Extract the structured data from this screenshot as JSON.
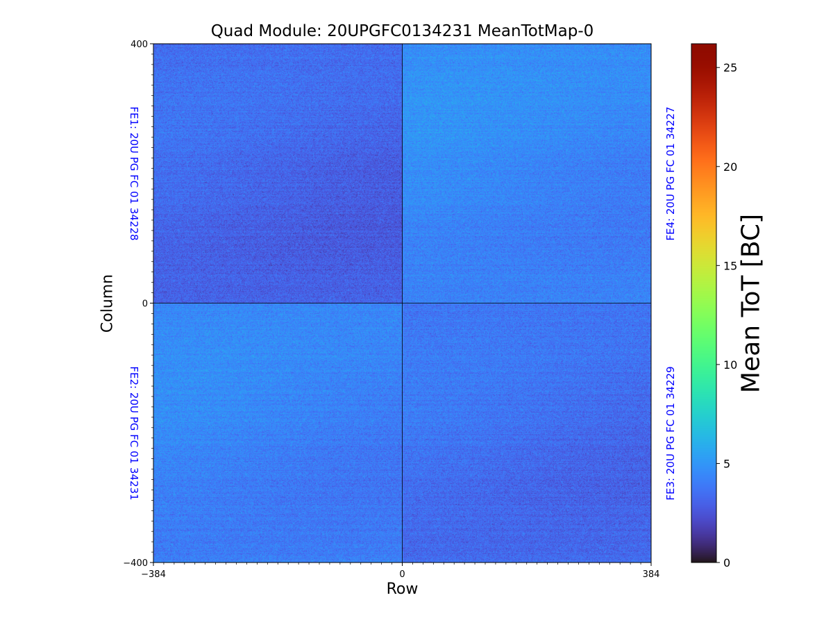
{
  "chart_data": {
    "type": "heatmap",
    "title": "Quad Module: 20UPGFC0134231 MeanTotMap-0",
    "xlabel": "Row",
    "ylabel": "Column",
    "xlim": [
      -384,
      384
    ],
    "ylim": [
      -400,
      400
    ],
    "x_ticks": [
      "−384",
      "0",
      "384"
    ],
    "y_ticks": [
      "400",
      "0",
      "−400"
    ],
    "colormap": "turbo",
    "colorbar": {
      "label": "Mean ToT [BC]",
      "range": [
        0,
        26.2
      ],
      "ticks": [
        "0",
        "5",
        "10",
        "15",
        "20",
        "25"
      ]
    },
    "quadrants": [
      {
        "chip": "FE1: 20U PG FC 01 34228",
        "position": "top-left",
        "mean_tot_approx": 3.2
      },
      {
        "chip": "FE4: 20U PG FC 01 34227",
        "position": "top-right",
        "mean_tot_approx": 4.4
      },
      {
        "chip": "FE2: 20U PG FC 01 34231",
        "position": "bottom-left",
        "mean_tot_approx": 4.2
      },
      {
        "chip": "FE3: 20U PG FC 01 34229",
        "position": "bottom-right",
        "mean_tot_approx": 3.5
      }
    ],
    "grid": false
  },
  "colors": {
    "chip_label": "#0000ff"
  }
}
